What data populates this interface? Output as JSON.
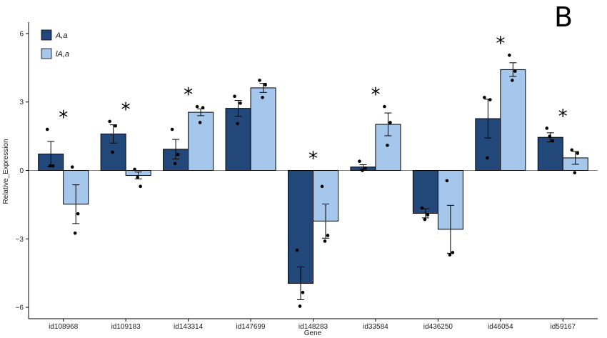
{
  "panel_label": "B",
  "chart_data": {
    "type": "bar",
    "xlabel": "Gene",
    "ylabel": "Relative_Expression",
    "ylim": [
      -6.5,
      6.5
    ],
    "yticks": [
      -6,
      -3,
      0,
      3,
      6
    ],
    "ytick_labels": [
      "−6",
      "−3",
      "0",
      "3",
      "6"
    ],
    "categories": [
      "id108968",
      "id109183",
      "id143314",
      "id147699",
      "id148283",
      "id33584",
      "id436250",
      "id46054",
      "id59167"
    ],
    "series": [
      {
        "name": "A,a",
        "color": "#22487a",
        "values": [
          0.72,
          1.6,
          0.93,
          2.72,
          -4.95,
          0.15,
          -1.88,
          2.27,
          1.45
        ],
        "errors": [
          0.55,
          0.4,
          0.43,
          0.35,
          0.72,
          0.1,
          0.2,
          0.85,
          0.2
        ],
        "points": [
          [
            1.8,
            0.2,
            0.2
          ],
          [
            2.15,
            1.95,
            0.8
          ],
          [
            1.8,
            0.7,
            0.3
          ],
          [
            3.25,
            2.95,
            2.05
          ],
          [
            -3.5,
            -5.35,
            -5.95
          ],
          [
            0.4,
            0.1,
            0.0
          ],
          [
            -1.65,
            -1.95,
            -2.15
          ],
          [
            3.2,
            3.1,
            0.55
          ],
          [
            1.85,
            1.3,
            1.5
          ]
        ]
      },
      {
        "name": "lA,a",
        "color": "#a6c7ec",
        "values": [
          -1.48,
          -0.22,
          2.55,
          3.62,
          -2.22,
          2.02,
          -2.58,
          4.42,
          0.55
        ],
        "errors": [
          0.85,
          0.15,
          0.15,
          0.2,
          0.75,
          0.5,
          1.05,
          0.3,
          0.28
        ],
        "points": [
          [
            0.15,
            -1.9,
            -2.75
          ],
          [
            0.05,
            -0.7,
            -0.3
          ],
          [
            2.8,
            2.75,
            2.1
          ],
          [
            3.95,
            3.75,
            3.2
          ],
          [
            -0.7,
            -2.85,
            -3.1
          ],
          [
            2.8,
            2.1,
            1.1
          ],
          [
            -0.45,
            -3.6,
            -3.7
          ],
          [
            5.05,
            4.35,
            3.95
          ],
          [
            0.9,
            0.75,
            -0.1
          ]
        ]
      }
    ],
    "significance": [
      "*",
      "*",
      "*",
      "",
      "*",
      "*",
      "",
      "*",
      "*"
    ],
    "legend": {
      "position": "top-left",
      "entries": [
        "A,a",
        "lA,a"
      ]
    }
  }
}
